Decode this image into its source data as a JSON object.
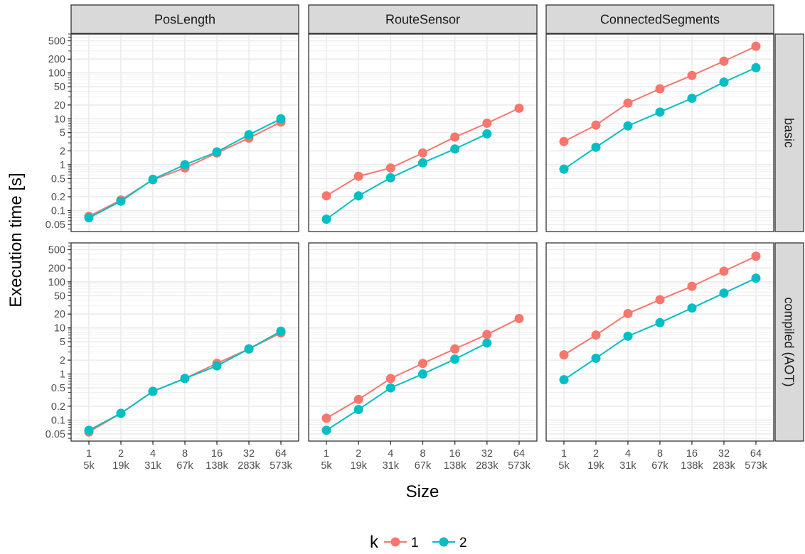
{
  "chart_data": {
    "type": "line",
    "ylabel": "Execution time [s]",
    "xlabel": "Size",
    "y_scale": "log",
    "ylim": [
      0.035,
      700
    ],
    "y_ticks": [
      0.05,
      0.1,
      0.2,
      0.5,
      1,
      2,
      5,
      10,
      20,
      50,
      100,
      200,
      500
    ],
    "y_tick_labels": [
      "0.05",
      "0.1",
      "0.2",
      "0.5",
      "1",
      "2",
      "5",
      "10",
      "20",
      "50",
      "100",
      "200",
      "500"
    ],
    "x_ticks": [
      {
        "top": "1",
        "bottom": "5k"
      },
      {
        "top": "2",
        "bottom": "19k"
      },
      {
        "top": "4",
        "bottom": "31k"
      },
      {
        "top": "8",
        "bottom": "67k"
      },
      {
        "top": "16",
        "bottom": "138k"
      },
      {
        "top": "32",
        "bottom": "283k"
      },
      {
        "top": "64",
        "bottom": "573k"
      }
    ],
    "legend": {
      "title": "k",
      "position": "bottom",
      "entries": [
        {
          "label": "1",
          "color": "#F8766D"
        },
        {
          "label": "2",
          "color": "#00BFC4"
        }
      ]
    },
    "columns": [
      "PosLength",
      "RouteSensor",
      "ConnectedSegments"
    ],
    "rows": [
      "basic",
      "compiled (AOT)"
    ],
    "panels": [
      {
        "column": "PosLength",
        "row": "basic",
        "series": [
          {
            "k": "1",
            "values": [
              0.075,
              0.17,
              0.47,
              0.85,
              1.8,
              3.8,
              8.5
            ]
          },
          {
            "k": "2",
            "values": [
              0.07,
              0.16,
              0.48,
              1.0,
              1.9,
              4.5,
              10
            ]
          }
        ]
      },
      {
        "column": "RouteSensor",
        "row": "basic",
        "series": [
          {
            "k": "1",
            "values": [
              0.21,
              0.56,
              0.85,
              1.8,
              4.0,
              8.0,
              17
            ]
          },
          {
            "k": "2",
            "values": [
              0.065,
              0.21,
              0.52,
              1.1,
              2.2,
              4.7,
              null
            ]
          }
        ]
      },
      {
        "column": "ConnectedSegments",
        "row": "basic",
        "series": [
          {
            "k": "1",
            "values": [
              3.2,
              7.3,
              22,
              45,
              88,
              180,
              380
            ]
          },
          {
            "k": "2",
            "values": [
              0.8,
              2.4,
              7.0,
              14,
              28,
              63,
              130
            ]
          }
        ]
      },
      {
        "column": "PosLength",
        "row": "compiled (AOT)",
        "series": [
          {
            "k": "1",
            "values": [
              0.055,
              0.14,
              0.42,
              0.8,
              1.7,
              3.5,
              7.8
            ]
          },
          {
            "k": "2",
            "values": [
              0.06,
              0.14,
              0.42,
              0.8,
              1.5,
              3.5,
              8.5
            ]
          }
        ]
      },
      {
        "column": "RouteSensor",
        "row": "compiled (AOT)",
        "series": [
          {
            "k": "1",
            "values": [
              0.11,
              0.28,
              0.8,
              1.7,
              3.5,
              7.2,
              16
            ]
          },
          {
            "k": "2",
            "values": [
              0.06,
              0.17,
              0.5,
              1.0,
              2.1,
              4.7,
              null
            ]
          }
        ]
      },
      {
        "column": "ConnectedSegments",
        "row": "compiled (AOT)",
        "series": [
          {
            "k": "1",
            "values": [
              2.6,
              7.0,
              20.5,
              41,
              80,
              170,
              360
            ]
          },
          {
            "k": "2",
            "values": [
              0.75,
              2.2,
              6.6,
              13,
              27,
              57,
              120
            ]
          }
        ]
      }
    ]
  }
}
